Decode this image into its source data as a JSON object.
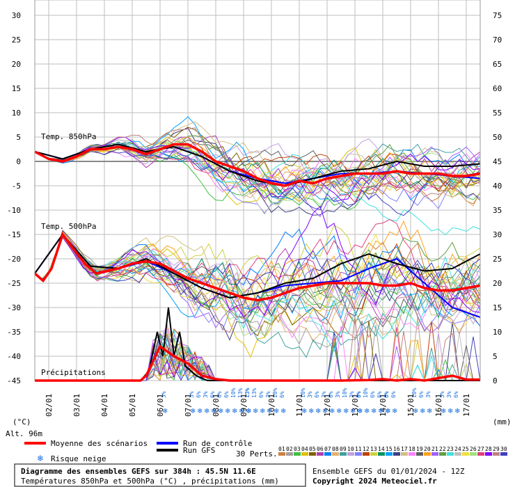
{
  "chart_data": {
    "type": "line",
    "title": "Diagramme des ensembles GEFS sur 384h : 45.5N 11.6E",
    "subtitle": "Températures 850hPa et 500hPa (°C) , précipitations (mm)",
    "left_axis": {
      "label": "(°C)",
      "ticks": [
        30,
        25,
        20,
        15,
        10,
        5,
        0,
        -5,
        -10,
        -15,
        -20,
        -25,
        -30,
        -35,
        -40,
        -45
      ],
      "range": [
        -45,
        30
      ]
    },
    "right_axis": {
      "label": "(mm)",
      "ticks": [
        75,
        70,
        65,
        60,
        55,
        50,
        45,
        40,
        35,
        30,
        25,
        20,
        15,
        10,
        5,
        0
      ],
      "range": [
        0,
        75
      ]
    },
    "x_ticks": [
      "02/01",
      "03/01",
      "04/01",
      "05/01",
      "06/01",
      "07/01",
      "08/01",
      "09/01",
      "10/01",
      "11/01",
      "12/01",
      "13/01",
      "14/01",
      "15/01",
      "16/01",
      "17/01"
    ],
    "altitude": "Alt. 96m",
    "annotations": {
      "t850": "Temp. 850hPa",
      "t500": "Temp. 500hPa",
      "precip": "Précipitations"
    },
    "series_mean_850": {
      "name": "Moyenne des scénarios",
      "x": [
        0,
        0.5,
        1,
        1.5,
        2,
        2.5,
        3,
        3.5,
        4,
        4.5,
        5,
        5.5,
        6,
        6.5,
        7,
        7.5,
        8,
        8.5,
        9,
        9.5,
        10,
        10.5,
        11,
        11.5,
        12,
        12.5,
        13,
        13.5,
        14,
        14.5,
        15,
        15.5,
        16
      ],
      "values": [
        2,
        0.5,
        0,
        1,
        2.5,
        2.5,
        3,
        2.5,
        1.5,
        2.5,
        3.5,
        3.5,
        2,
        0,
        -1,
        -2,
        -3.5,
        -4.5,
        -5,
        -4,
        -4.5,
        -3.5,
        -3,
        -2.5,
        -2.5,
        -2.5,
        -2,
        -2.5,
        -2.5,
        -2.5,
        -3,
        -3,
        -2.5
      ]
    },
    "series_mean_500": {
      "name": "Moyenne des scénarios",
      "x": [
        0,
        0.3,
        0.6,
        1,
        1.4,
        1.8,
        2.2,
        2.6,
        3,
        3.5,
        4,
        4.5,
        5,
        5.5,
        6,
        6.5,
        7,
        7.5,
        8,
        8.5,
        9,
        9.5,
        10,
        10.5,
        11,
        11.5,
        12,
        12.5,
        13,
        13.5,
        14,
        14.5,
        15,
        15.5,
        16
      ],
      "values": [
        -23,
        -24.5,
        -22,
        -15,
        -18,
        -21,
        -23,
        -22.5,
        -22,
        -21,
        -20.5,
        -21,
        -22.5,
        -24,
        -25,
        -26,
        -27,
        -28,
        -28.5,
        -28,
        -27,
        -26,
        -25.5,
        -25,
        -25,
        -25,
        -25,
        -25.5,
        -25.5,
        -25,
        -26,
        -26.5,
        -26.5,
        -26,
        -25.5
      ]
    },
    "series_mean_precip": {
      "name": "Moyenne des scénarios",
      "x": [
        0,
        1,
        2,
        3,
        3.8,
        4,
        4.5,
        5,
        5.5,
        6,
        6.5,
        7,
        8,
        9,
        10,
        11,
        12,
        12.5,
        13,
        13.5,
        14,
        14.5,
        15,
        15.5,
        16
      ],
      "values": [
        0,
        0,
        0,
        0,
        0,
        1,
        7,
        5,
        3.5,
        1,
        0.3,
        0,
        0,
        0,
        0,
        0,
        0.1,
        0.3,
        0,
        0.3,
        0,
        0.5,
        1,
        0.2,
        0.2
      ]
    },
    "series_control_850": {
      "name": "Run de contrôle",
      "x": [
        0,
        1,
        2,
        3,
        4,
        5,
        6,
        7,
        8,
        9,
        10,
        11,
        12,
        13,
        14,
        15,
        16
      ],
      "values": [
        2,
        0.5,
        2.5,
        3.5,
        2,
        3,
        1,
        -2,
        -3.5,
        -4.5,
        -3.5,
        -2.5,
        -2.5,
        -2,
        -2.5,
        -3,
        -3.5
      ]
    },
    "series_gfs_850": {
      "name": "Run GFS",
      "x": [
        0,
        1,
        2,
        3,
        4,
        5,
        6,
        7,
        8,
        9,
        10,
        11,
        12,
        13,
        14,
        15,
        16
      ],
      "values": [
        2,
        0.5,
        2.5,
        3.5,
        2,
        3,
        1,
        -2,
        -4,
        -5,
        -3.5,
        -2,
        -1.5,
        0,
        -1,
        -1,
        -0.5
      ]
    },
    "series_control_500": {
      "name": "Run de contrôle",
      "x": [
        0,
        1,
        2,
        3,
        4,
        5,
        6,
        7,
        8,
        9,
        10,
        11,
        12,
        13,
        14,
        15,
        16
      ],
      "values": [
        -23,
        -15,
        -21.5,
        -22,
        -20.5,
        -23,
        -26,
        -28,
        -27,
        -25.5,
        -25,
        -24.5,
        -22,
        -20,
        -25,
        -30,
        -32
      ]
    },
    "series_gfs_500": {
      "name": "Run GFS",
      "x": [
        0,
        1,
        2,
        3,
        4,
        5,
        6,
        7,
        8,
        9,
        10,
        11,
        12,
        13,
        14,
        15,
        16
      ],
      "values": [
        -23,
        -15,
        -21.5,
        -22,
        -20,
        -23,
        -26,
        -28,
        -27,
        -25,
        -24,
        -21,
        -19,
        -21,
        -22.5,
        -22,
        -19
      ]
    },
    "series_gfs_precip": {
      "name": "Run GFS",
      "x": [
        0,
        3.8,
        4.1,
        4.4,
        4.6,
        4.8,
        5,
        5.2,
        5.4,
        5.8,
        6.2,
        7,
        16
      ],
      "values": [
        0,
        0,
        2,
        10,
        5,
        15,
        5,
        10,
        3,
        1,
        0,
        0,
        0
      ]
    },
    "snow_risk": [
      {
        "day": "07",
        "pct": [
          "3%"
        ]
      },
      {
        "day": "08",
        "pct": [
          "3%",
          "6%",
          "3%",
          "6%"
        ]
      },
      {
        "day": "09",
        "pct": [
          "6%",
          "6%",
          "10%",
          "13%",
          "13%"
        ]
      },
      {
        "day": "10",
        "pct": [
          "13%",
          "13%",
          "6%",
          "3%"
        ]
      },
      {
        "day": "11",
        "pct": [
          "10%",
          "6%"
        ]
      },
      {
        "day": "12",
        "pct": [
          "10%",
          "3%",
          "6%",
          "3%"
        ]
      },
      {
        "day": "13",
        "pct": [
          "6%",
          "3%",
          "10%",
          "3%",
          "3%"
        ]
      },
      {
        "day": "14",
        "pct": [
          "6%",
          "10%",
          "6%",
          "6%",
          "6%"
        ]
      },
      {
        "day": "15",
        "pct": [
          "6%",
          "6%"
        ]
      },
      {
        "day": "16",
        "pct": [
          "10%",
          "6%",
          "3%"
        ]
      },
      {
        "day": "17",
        "pct": [
          "3%",
          "3%",
          "6%"
        ]
      }
    ],
    "perturbations_count": "30 Perts.",
    "perturbation_labels": [
      "01",
      "02",
      "03",
      "04",
      "05",
      "06",
      "07",
      "08",
      "09",
      "10",
      "11",
      "12",
      "13",
      "14",
      "15",
      "16",
      "17",
      "18",
      "19",
      "20",
      "21",
      "22",
      "23",
      "24",
      "25",
      "26",
      "27",
      "28",
      "29",
      "30"
    ],
    "perturbation_colors": [
      "#d08040",
      "#a0a0a0",
      "#40c040",
      "#e0c000",
      "#806000",
      "#b040b0",
      "#0080ff",
      "#e0b070",
      "#40a0a0",
      "#c0a0e0",
      "#8080ff",
      "#c04000",
      "#d0d040",
      "#009060",
      "#00a0ff",
      "#404080",
      "#d0c080",
      "#ff80ff",
      "#606060",
      "#ffa020",
      "#a060ff",
      "#60a040",
      "#40e0e0",
      "#c0c0c0",
      "#f0e040",
      "#a0e080",
      "#e04080",
      "#8000ff",
      "#c08080",
      "#4040c0"
    ]
  },
  "legend": {
    "mean_label": "Moyenne des scénarios",
    "control_label": "Run de contrôle",
    "gfs_label": "Run GFS",
    "snow_label": "Risque neige",
    "mean_color": "#ff0000",
    "control_color": "#0000ff",
    "gfs_color": "#000000"
  },
  "footer": {
    "title": "Diagramme des ensembles GEFS sur 384h : 45.5N 11.6E",
    "subtitle": "Températures 850hPa et 500hPa (°C) , précipitations (mm)",
    "run_info": "Ensemble GEFS du 01/01/2024 - 12Z",
    "copyright": "Copyright 2024 Meteociel.fr"
  }
}
